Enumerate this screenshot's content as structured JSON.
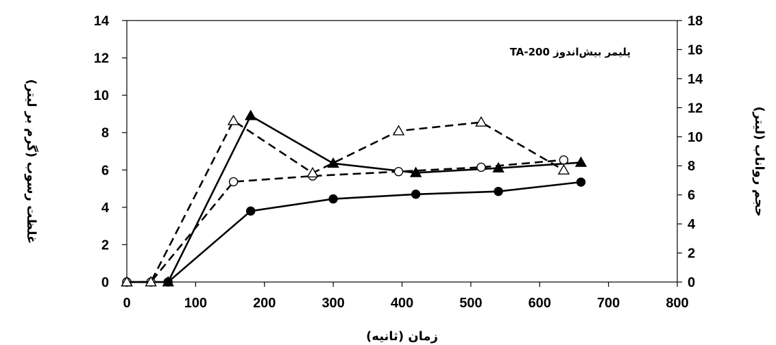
{
  "chart_data": {
    "type": "line",
    "title": "",
    "annotation": "پلیمر بیش‌اندوز TA-200",
    "xlabel": "زمان (ثانیه)",
    "ylabel_left": "غلظت رسوب (گرم بر لیتر)",
    "ylabel_right": "حجم رواناب (لیتر)",
    "xlim": [
      0,
      800
    ],
    "ylim_left": [
      0,
      14
    ],
    "ylim_right": [
      0,
      18
    ],
    "x_ticks": [
      0,
      100,
      200,
      300,
      400,
      500,
      600,
      700,
      800
    ],
    "y_left_ticks": [
      0,
      2,
      4,
      6,
      8,
      10,
      12,
      14
    ],
    "y_right_ticks": [
      0,
      2,
      4,
      6,
      8,
      10,
      12,
      14,
      16,
      18
    ],
    "grid": false,
    "legend": "none",
    "series": [
      {
        "axis": "left",
        "marker": "filled-circle",
        "line": "solid",
        "color": "#000000",
        "x": [
          0,
          60,
          180,
          300,
          420,
          540,
          660
        ],
        "y": [
          0,
          0,
          3.8,
          4.45,
          4.7,
          4.85,
          5.35
        ]
      },
      {
        "axis": "left",
        "marker": "filled-triangle",
        "line": "solid",
        "color": "#000000",
        "x": [
          0,
          60,
          180,
          300,
          420,
          540,
          660
        ],
        "y": [
          0,
          0,
          8.9,
          6.35,
          5.85,
          6.1,
          6.4
        ]
      },
      {
        "axis": "right",
        "marker": "open-circle",
        "line": "dashed",
        "color": "#000000",
        "x": [
          0,
          35,
          155,
          270,
          395,
          515,
          635
        ],
        "y": [
          0,
          0,
          6.9,
          7.3,
          7.6,
          7.9,
          8.4
        ]
      },
      {
        "axis": "right",
        "marker": "open-triangle",
        "line": "dashed",
        "color": "#000000",
        "x": [
          0,
          35,
          155,
          270,
          395,
          515,
          635
        ],
        "y": [
          0,
          0,
          11.1,
          7.5,
          10.4,
          11.0,
          7.7
        ]
      }
    ]
  }
}
